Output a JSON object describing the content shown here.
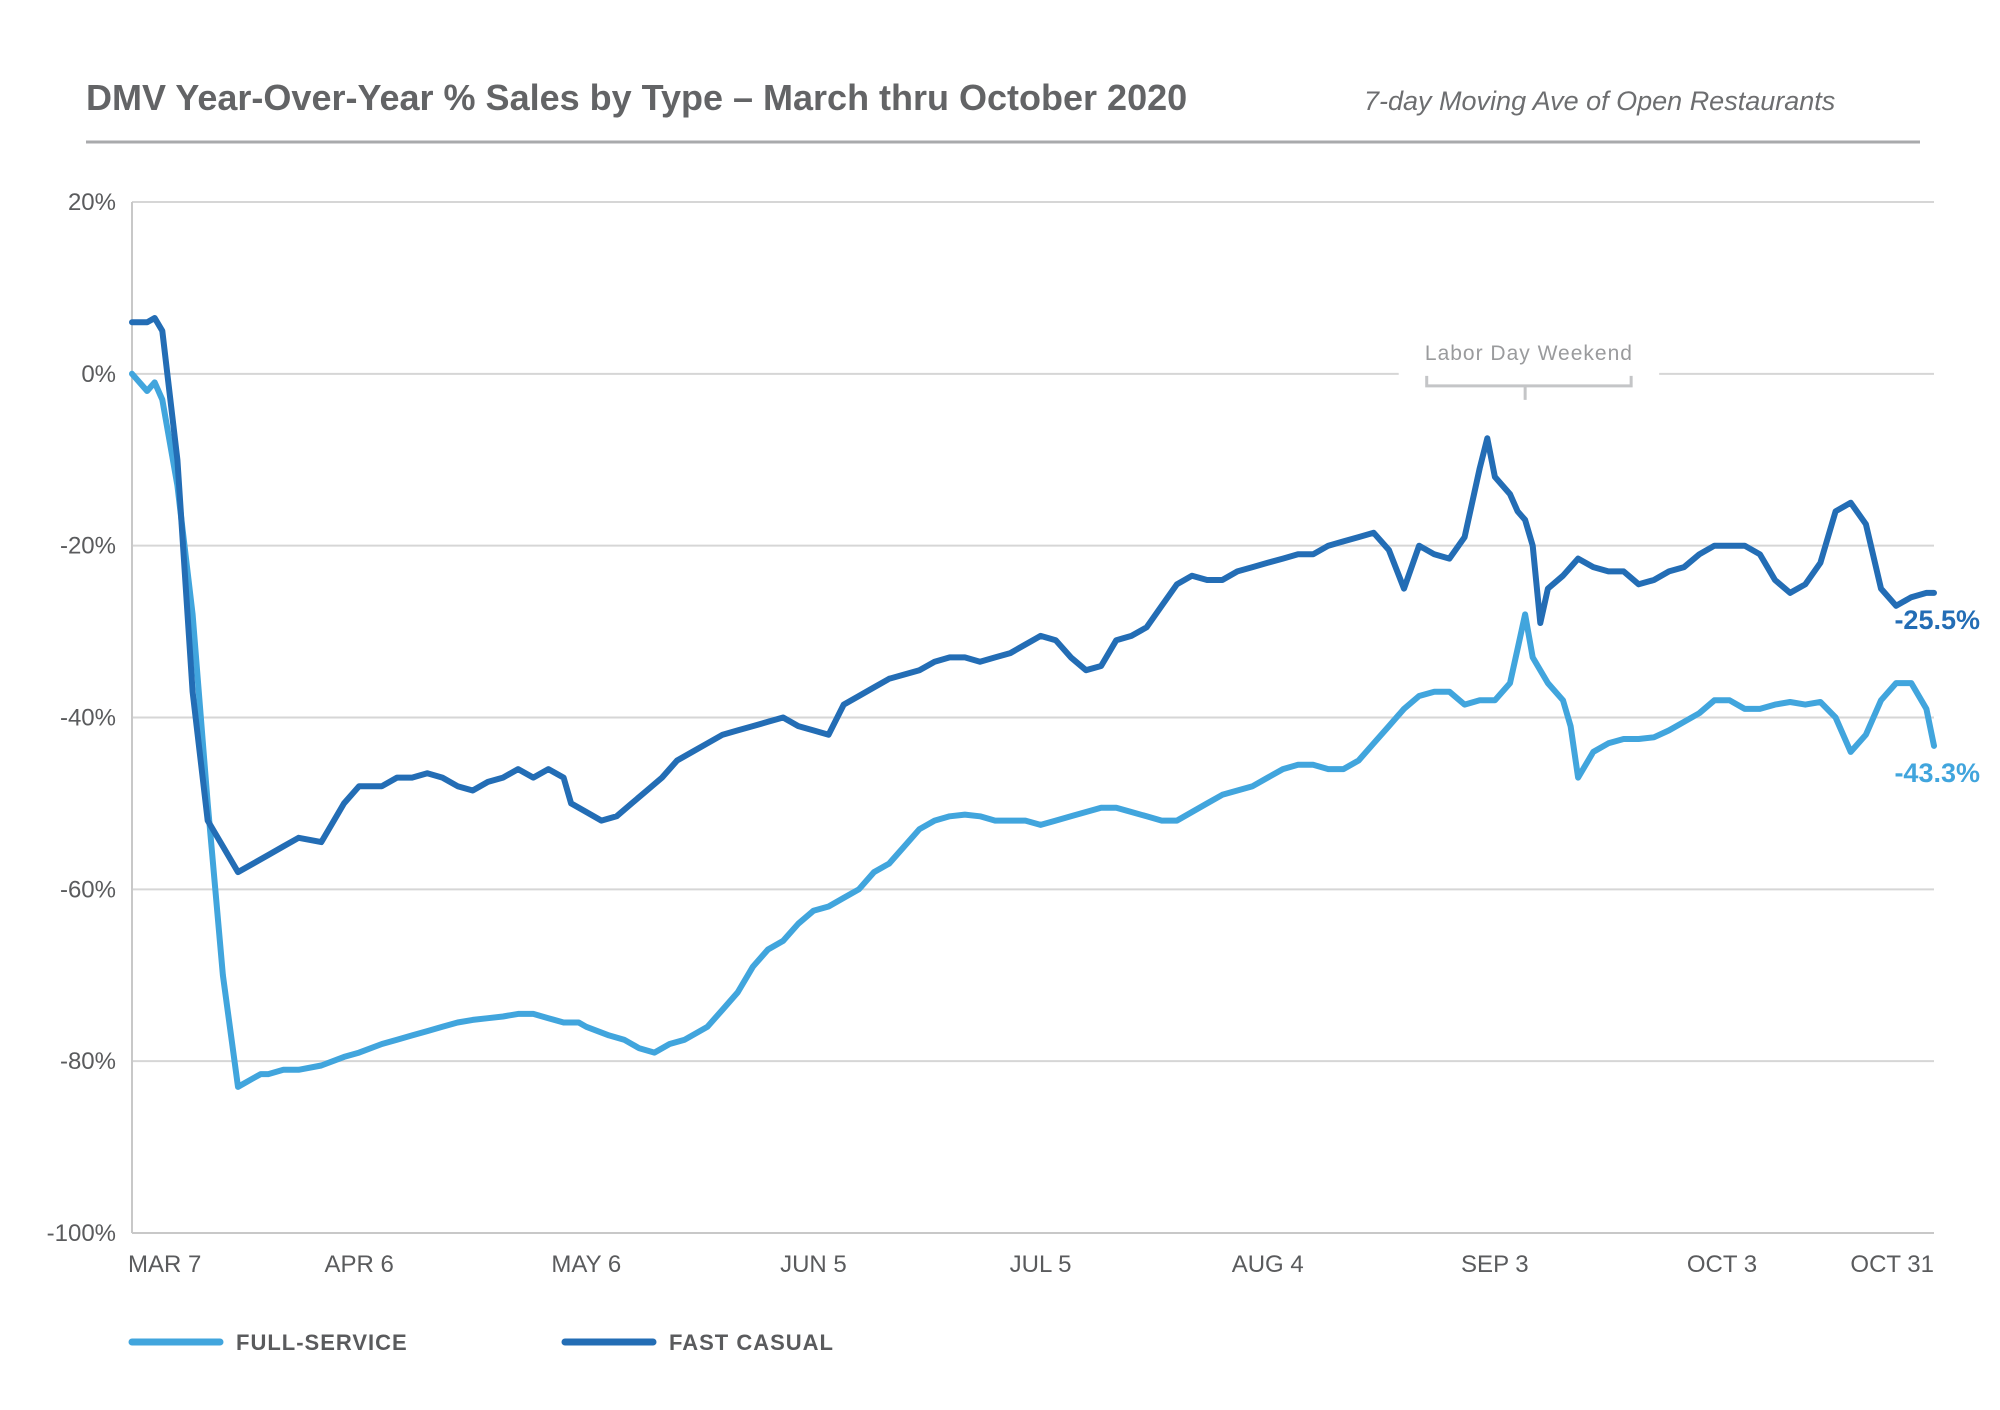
{
  "chart_data": {
    "type": "line",
    "title": "DMV Year-Over-Year % Sales by Type – March thru October 2020",
    "subtitle": "7-day Moving Ave of Open Restaurants",
    "xlabel": "",
    "ylabel": "",
    "y_tick_labels": [
      "20%",
      "0%",
      "-20%",
      "-40%",
      "-60%",
      "-80%",
      "-100%"
    ],
    "y_ticks": [
      20,
      0,
      -20,
      -40,
      -60,
      -80,
      -100
    ],
    "ylim": [
      -100,
      20
    ],
    "x_tick_labels": [
      "MAR 7",
      "APR 6",
      "MAY 6",
      "JUN 5",
      "JUL 5",
      "AUG 4",
      "SEP 3",
      "OCT 3",
      "OCT 31"
    ],
    "x_ticks": [
      "2020-03-07",
      "2020-04-06",
      "2020-05-06",
      "2020-06-05",
      "2020-07-05",
      "2020-08-04",
      "2020-09-03",
      "2020-10-03",
      "2020-10-31"
    ],
    "xlim": [
      "2020-03-07",
      "2020-10-31"
    ],
    "grid": "horizontal",
    "legend_position": "bottom-left",
    "annotation": {
      "text": "Labor Day Weekend",
      "from": "2020-08-25",
      "to": "2020-09-21",
      "marker": "2020-09-07"
    },
    "series": [
      {
        "name": "FULL-SERVICE",
        "color": "#41a5dd",
        "end_label": "-43.3%",
        "x": [
          "2020-03-07",
          "2020-03-09",
          "2020-03-10",
          "2020-03-11",
          "2020-03-13",
          "2020-03-15",
          "2020-03-17",
          "2020-03-19",
          "2020-03-21",
          "2020-03-23",
          "2020-03-24",
          "2020-03-25",
          "2020-03-27",
          "2020-03-29",
          "2020-04-01",
          "2020-04-04",
          "2020-04-06",
          "2020-04-09",
          "2020-04-11",
          "2020-04-13",
          "2020-04-15",
          "2020-04-17",
          "2020-04-19",
          "2020-04-21",
          "2020-04-23",
          "2020-04-25",
          "2020-04-27",
          "2020-04-29",
          "2020-05-01",
          "2020-05-03",
          "2020-05-05",
          "2020-05-06",
          "2020-05-09",
          "2020-05-11",
          "2020-05-13",
          "2020-05-15",
          "2020-05-17",
          "2020-05-19",
          "2020-05-22",
          "2020-05-24",
          "2020-05-26",
          "2020-05-28",
          "2020-05-30",
          "2020-06-01",
          "2020-06-03",
          "2020-06-05",
          "2020-06-07",
          "2020-06-09",
          "2020-06-11",
          "2020-06-13",
          "2020-06-15",
          "2020-06-17",
          "2020-06-19",
          "2020-06-21",
          "2020-06-23",
          "2020-06-25",
          "2020-06-27",
          "2020-06-29",
          "2020-07-01",
          "2020-07-03",
          "2020-07-05",
          "2020-07-07",
          "2020-07-09",
          "2020-07-11",
          "2020-07-13",
          "2020-07-15",
          "2020-07-17",
          "2020-07-19",
          "2020-07-21",
          "2020-07-23",
          "2020-07-25",
          "2020-07-27",
          "2020-07-29",
          "2020-07-31",
          "2020-08-02",
          "2020-08-04",
          "2020-08-06",
          "2020-08-08",
          "2020-08-10",
          "2020-08-12",
          "2020-08-14",
          "2020-08-16",
          "2020-08-18",
          "2020-08-20",
          "2020-08-22",
          "2020-08-24",
          "2020-08-26",
          "2020-08-28",
          "2020-08-30",
          "2020-09-01",
          "2020-09-03",
          "2020-09-05",
          "2020-09-06",
          "2020-09-07",
          "2020-09-08",
          "2020-09-10",
          "2020-09-12",
          "2020-09-13",
          "2020-09-14",
          "2020-09-16",
          "2020-09-18",
          "2020-09-20",
          "2020-09-22",
          "2020-09-24",
          "2020-09-26",
          "2020-09-28",
          "2020-09-30",
          "2020-10-02",
          "2020-10-04",
          "2020-10-06",
          "2020-10-08",
          "2020-10-10",
          "2020-10-12",
          "2020-10-14",
          "2020-10-16",
          "2020-10-18",
          "2020-10-20",
          "2020-10-22",
          "2020-10-24",
          "2020-10-26",
          "2020-10-28",
          "2020-10-30",
          "2020-10-31"
        ],
        "values": [
          0,
          -2,
          -1,
          -3,
          -13,
          -28,
          -50,
          -70,
          -83,
          -82,
          -81.5,
          -81.5,
          -81,
          -81,
          -80.5,
          -79.5,
          -79,
          -78,
          -77.5,
          -77,
          -76.5,
          -76,
          -75.5,
          -75.2,
          -75,
          -74.8,
          -74.5,
          -74.5,
          -75,
          -75.5,
          -75.5,
          -76,
          -77,
          -77.5,
          -78.5,
          -79,
          -78,
          -77.5,
          -76,
          -74,
          -72,
          -69,
          -67,
          -66,
          -64,
          -62.5,
          -62,
          -61,
          -60,
          -58,
          -57,
          -55,
          -53,
          -52,
          -51.5,
          -51.3,
          -51.5,
          -52,
          -52,
          -52,
          -52.5,
          -52,
          -51.5,
          -51,
          -50.5,
          -50.5,
          -51,
          -51.5,
          -52,
          -52,
          -51,
          -50,
          -49,
          -48.5,
          -48,
          -47,
          -46,
          -45.5,
          -45.5,
          -46,
          -46,
          -45,
          -43,
          -41,
          -39,
          -37.5,
          -37,
          -37,
          -38.5,
          -38,
          -38,
          -36,
          -32,
          -28,
          -33,
          -36,
          -38,
          -41,
          -47,
          -44,
          -43,
          -42.5,
          -42.5,
          -42.3,
          -41.5,
          -40.5,
          -39.5,
          -38,
          -38,
          -39,
          -39,
          -38.5,
          -38.2,
          -38.5,
          -38.2,
          -40,
          -44,
          -42,
          -38,
          -36,
          -36,
          -39,
          -43.3
        ]
      },
      {
        "name": "FAST CASUAL",
        "color": "#236db5",
        "end_label": "-25.5%",
        "x": [
          "2020-03-07",
          "2020-03-09",
          "2020-03-10",
          "2020-03-11",
          "2020-03-13",
          "2020-03-15",
          "2020-03-17",
          "2020-03-19",
          "2020-03-21",
          "2020-03-23",
          "2020-03-25",
          "2020-03-27",
          "2020-03-29",
          "2020-04-01",
          "2020-04-04",
          "2020-04-06",
          "2020-04-09",
          "2020-04-11",
          "2020-04-13",
          "2020-04-15",
          "2020-04-17",
          "2020-04-19",
          "2020-04-21",
          "2020-04-23",
          "2020-04-25",
          "2020-04-27",
          "2020-04-29",
          "2020-05-01",
          "2020-05-03",
          "2020-05-04",
          "2020-05-06",
          "2020-05-08",
          "2020-05-10",
          "2020-05-12",
          "2020-05-14",
          "2020-05-16",
          "2020-05-18",
          "2020-05-20",
          "2020-05-22",
          "2020-05-24",
          "2020-05-26",
          "2020-05-28",
          "2020-05-30",
          "2020-06-01",
          "2020-06-03",
          "2020-06-05",
          "2020-06-07",
          "2020-06-09",
          "2020-06-11",
          "2020-06-13",
          "2020-06-15",
          "2020-06-17",
          "2020-06-19",
          "2020-06-21",
          "2020-06-23",
          "2020-06-25",
          "2020-06-27",
          "2020-06-29",
          "2020-07-01",
          "2020-07-03",
          "2020-07-05",
          "2020-07-07",
          "2020-07-09",
          "2020-07-11",
          "2020-07-13",
          "2020-07-15",
          "2020-07-17",
          "2020-07-19",
          "2020-07-21",
          "2020-07-23",
          "2020-07-25",
          "2020-07-27",
          "2020-07-29",
          "2020-07-31",
          "2020-08-02",
          "2020-08-04",
          "2020-08-06",
          "2020-08-08",
          "2020-08-10",
          "2020-08-12",
          "2020-08-14",
          "2020-08-16",
          "2020-08-18",
          "2020-08-20",
          "2020-08-22",
          "2020-08-24",
          "2020-08-26",
          "2020-08-28",
          "2020-08-30",
          "2020-09-01",
          "2020-09-02",
          "2020-09-03",
          "2020-09-05",
          "2020-09-06",
          "2020-09-07",
          "2020-09-08",
          "2020-09-09",
          "2020-09-10",
          "2020-09-12",
          "2020-09-13",
          "2020-09-14",
          "2020-09-16",
          "2020-09-18",
          "2020-09-20",
          "2020-09-22",
          "2020-09-24",
          "2020-09-26",
          "2020-09-28",
          "2020-09-30",
          "2020-10-02",
          "2020-10-04",
          "2020-10-06",
          "2020-10-08",
          "2020-10-10",
          "2020-10-12",
          "2020-10-14",
          "2020-10-16",
          "2020-10-18",
          "2020-10-20",
          "2020-10-22",
          "2020-10-24",
          "2020-10-26",
          "2020-10-28",
          "2020-10-30",
          "2020-10-31"
        ],
        "values": [
          6,
          6,
          6.5,
          5,
          -10,
          -37,
          -52,
          -55,
          -58,
          -57,
          -56,
          -55,
          -54,
          -54.5,
          -50,
          -48,
          -48,
          -47,
          -47,
          -46.5,
          -47,
          -48,
          -48.5,
          -47.5,
          -47,
          -46,
          -47,
          -46,
          -47,
          -50,
          -51,
          -52,
          -51.5,
          -50,
          -48.5,
          -47,
          -45,
          -44,
          -43,
          -42,
          -41.5,
          -41,
          -40.5,
          -40,
          -41,
          -41.5,
          -42,
          -38.5,
          -37.5,
          -36.5,
          -35.5,
          -35,
          -34.5,
          -33.5,
          -33,
          -33,
          -33.5,
          -33,
          -32.5,
          -31.5,
          -30.5,
          -31,
          -33,
          -34.5,
          -34,
          -31,
          -30.5,
          -29.5,
          -27,
          -24.5,
          -23.5,
          -24,
          -24,
          -23,
          -22.5,
          -22,
          -21.5,
          -21,
          -21,
          -20,
          -19.5,
          -19,
          -18.5,
          -20.5,
          -25,
          -20,
          -21,
          -21.5,
          -19,
          -11,
          -7.5,
          -12,
          -14,
          -16,
          -17,
          -20,
          -29,
          -25,
          -23.5,
          -22.5,
          -21.5,
          -22.5,
          -23,
          -23,
          -24.5,
          -24,
          -23,
          -22.5,
          -21,
          -20,
          -20,
          -20,
          -21,
          -24,
          -25.5,
          -24.5,
          -22,
          -16,
          -15,
          -17.5,
          -25,
          -27,
          -26,
          -25.5,
          -25.5
        ]
      }
    ]
  },
  "legend": {
    "items": [
      {
        "label": "FULL-SERVICE",
        "color": "#41a5dd"
      },
      {
        "label": "FAST CASUAL",
        "color": "#236db5"
      }
    ]
  }
}
